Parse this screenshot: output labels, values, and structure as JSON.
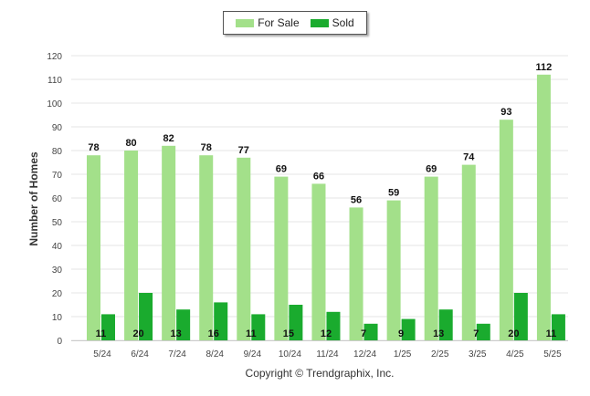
{
  "chart_data": {
    "type": "bar",
    "categories": [
      "5/24",
      "6/24",
      "7/24",
      "8/24",
      "9/24",
      "10/24",
      "11/24",
      "12/24",
      "1/25",
      "2/25",
      "3/25",
      "4/25",
      "5/25"
    ],
    "series": [
      {
        "name": "For Sale",
        "values": [
          78,
          80,
          82,
          78,
          77,
          69,
          66,
          56,
          59,
          69,
          74,
          93,
          112
        ],
        "color": "#a3e08a"
      },
      {
        "name": "Sold",
        "values": [
          11,
          20,
          13,
          16,
          11,
          15,
          12,
          7,
          9,
          13,
          7,
          20,
          11
        ],
        "color": "#1aab2e"
      }
    ],
    "ylabel": "Number of Homes",
    "yticks": [
      0,
      10,
      20,
      30,
      40,
      50,
      60,
      70,
      80,
      90,
      100,
      110,
      120
    ],
    "ylim": [
      0,
      120
    ],
    "grid": true,
    "legend_position": "top-center"
  },
  "footer": {
    "copyright": "Copyright © Trendgraphix, Inc."
  }
}
